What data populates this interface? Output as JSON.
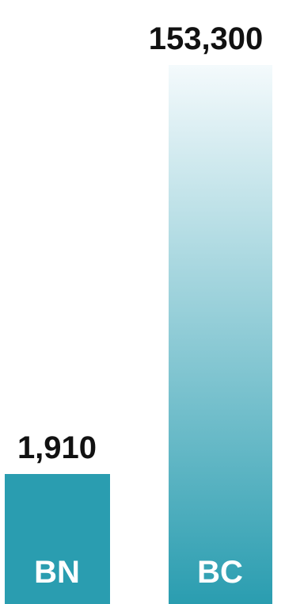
{
  "chart_data": {
    "type": "bar",
    "categories": [
      "BN",
      "BC"
    ],
    "values": [
      1910,
      153300
    ],
    "value_labels": [
      "1,910",
      "153,300"
    ],
    "colors": {
      "bn_bar": "#2a9db0",
      "bc_bar_bottom": "#2a9db0",
      "bc_bar_top": "#f4fafc",
      "value_text": "#111111",
      "category_text": "#ffffff"
    },
    "axes_shown": false,
    "grid": false,
    "legend": "none"
  }
}
